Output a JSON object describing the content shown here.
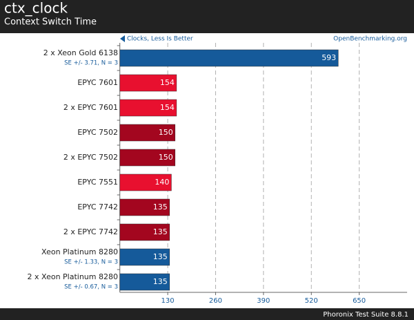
{
  "chart_data": {
    "type": "bar",
    "orientation": "horizontal",
    "title": "ctx_clock",
    "subtitle": "Context Switch Time",
    "annotation_left": "Clocks, Less Is Better",
    "annotation_right": "OpenBenchmarking.org",
    "footer": "Phoronix Test Suite 8.8.1",
    "categories": [
      "2 x Xeon Gold 6138",
      "EPYC 7601",
      "2 x EPYC 7601",
      "EPYC 7502",
      "2 x EPYC 7502",
      "EPYC 7551",
      "EPYC 7742",
      "2 x EPYC 7742",
      "Xeon Platinum 8280",
      "2 x Xeon Platinum 8280"
    ],
    "category_notes": [
      "SE +/- 3.71, N = 3",
      null,
      null,
      null,
      null,
      null,
      null,
      null,
      "SE +/- 1.33, N = 3",
      "SE +/- 0.67, N = 3"
    ],
    "values": [
      593,
      154,
      154,
      150,
      150,
      140,
      135,
      135,
      135,
      135
    ],
    "colors": [
      "#155a9a",
      "#e8102f",
      "#e8102f",
      "#a3061f",
      "#a3061f",
      "#e8102f",
      "#a3061f",
      "#a3061f",
      "#155a9a",
      "#155a9a"
    ],
    "xlim": [
      0,
      780
    ],
    "xticks": [
      130,
      260,
      390,
      520,
      650
    ],
    "grid": true
  }
}
